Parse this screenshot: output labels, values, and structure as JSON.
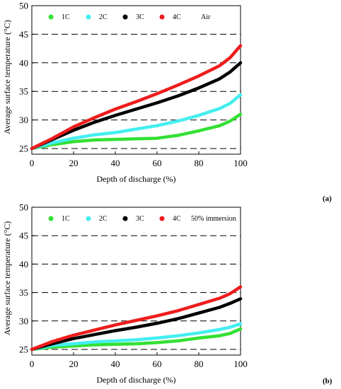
{
  "chart_data": [
    {
      "type": "line",
      "panel_label": "(a)",
      "annotation": "Air",
      "xlabel": "Depth of discharge (%)",
      "ylabel": "Average surface temperature (°C)",
      "xlim": [
        0,
        100
      ],
      "ylim": [
        25,
        50
      ],
      "x_ticks": [
        "0",
        "20",
        "40",
        "60",
        "80",
        "100"
      ],
      "y_ticks": [
        "25",
        "30",
        "35",
        "40",
        "45",
        "50"
      ],
      "grid": "dashed horizontal at each y tick",
      "legend_position": "top-left inside",
      "x": [
        0,
        10,
        20,
        30,
        40,
        50,
        60,
        70,
        80,
        90,
        95,
        100
      ],
      "series": [
        {
          "name": "1C",
          "color": "#33e033",
          "values": [
            25.0,
            25.7,
            26.2,
            26.5,
            26.6,
            26.7,
            26.8,
            27.3,
            28.1,
            29.0,
            29.8,
            31.0
          ]
        },
        {
          "name": "2C",
          "color": "#44eef0",
          "values": [
            25.0,
            26.0,
            26.8,
            27.4,
            27.8,
            28.4,
            29.0,
            29.8,
            30.8,
            32.0,
            32.9,
            34.4
          ]
        },
        {
          "name": "3C",
          "color": "#000000",
          "values": [
            25.0,
            26.6,
            28.2,
            29.6,
            30.8,
            31.9,
            33.0,
            34.2,
            35.6,
            37.2,
            38.4,
            40.0
          ]
        },
        {
          "name": "4C",
          "color": "#ee1c1c",
          "values": [
            25.0,
            26.8,
            28.8,
            30.4,
            31.9,
            33.2,
            34.6,
            36.1,
            37.7,
            39.5,
            40.9,
            43.0
          ]
        }
      ]
    },
    {
      "type": "line",
      "panel_label": "(b)",
      "annotation": "50% immersion",
      "xlabel": "Depth of discharge (%)",
      "ylabel": "Average surface temperature (°C)",
      "xlim": [
        0,
        100
      ],
      "ylim": [
        25,
        50
      ],
      "x_ticks": [
        "0",
        "20",
        "40",
        "60",
        "80",
        "100"
      ],
      "y_ticks": [
        "25",
        "30",
        "35",
        "40",
        "45",
        "50"
      ],
      "grid": "dashed horizontal at each y tick",
      "legend_position": "top-left inside",
      "x": [
        0,
        10,
        20,
        30,
        40,
        50,
        60,
        70,
        80,
        90,
        95,
        100
      ],
      "series": [
        {
          "name": "1C",
          "color": "#33e033",
          "values": [
            25.0,
            25.4,
            25.6,
            25.8,
            25.9,
            26.0,
            26.2,
            26.5,
            27.0,
            27.4,
            27.8,
            28.6
          ]
        },
        {
          "name": "2C",
          "color": "#44eef0",
          "values": [
            25.0,
            25.7,
            26.0,
            26.3,
            26.5,
            26.7,
            27.0,
            27.4,
            27.9,
            28.5,
            28.9,
            29.5
          ]
        },
        {
          "name": "3C",
          "color": "#000000",
          "values": [
            25.0,
            26.0,
            26.9,
            27.6,
            28.3,
            28.9,
            29.6,
            30.4,
            31.4,
            32.4,
            33.1,
            33.9
          ]
        },
        {
          "name": "4C",
          "color": "#ee1c1c",
          "values": [
            25.0,
            26.4,
            27.5,
            28.4,
            29.3,
            30.1,
            30.9,
            31.8,
            32.9,
            34.0,
            34.8,
            36.0
          ]
        }
      ]
    }
  ]
}
